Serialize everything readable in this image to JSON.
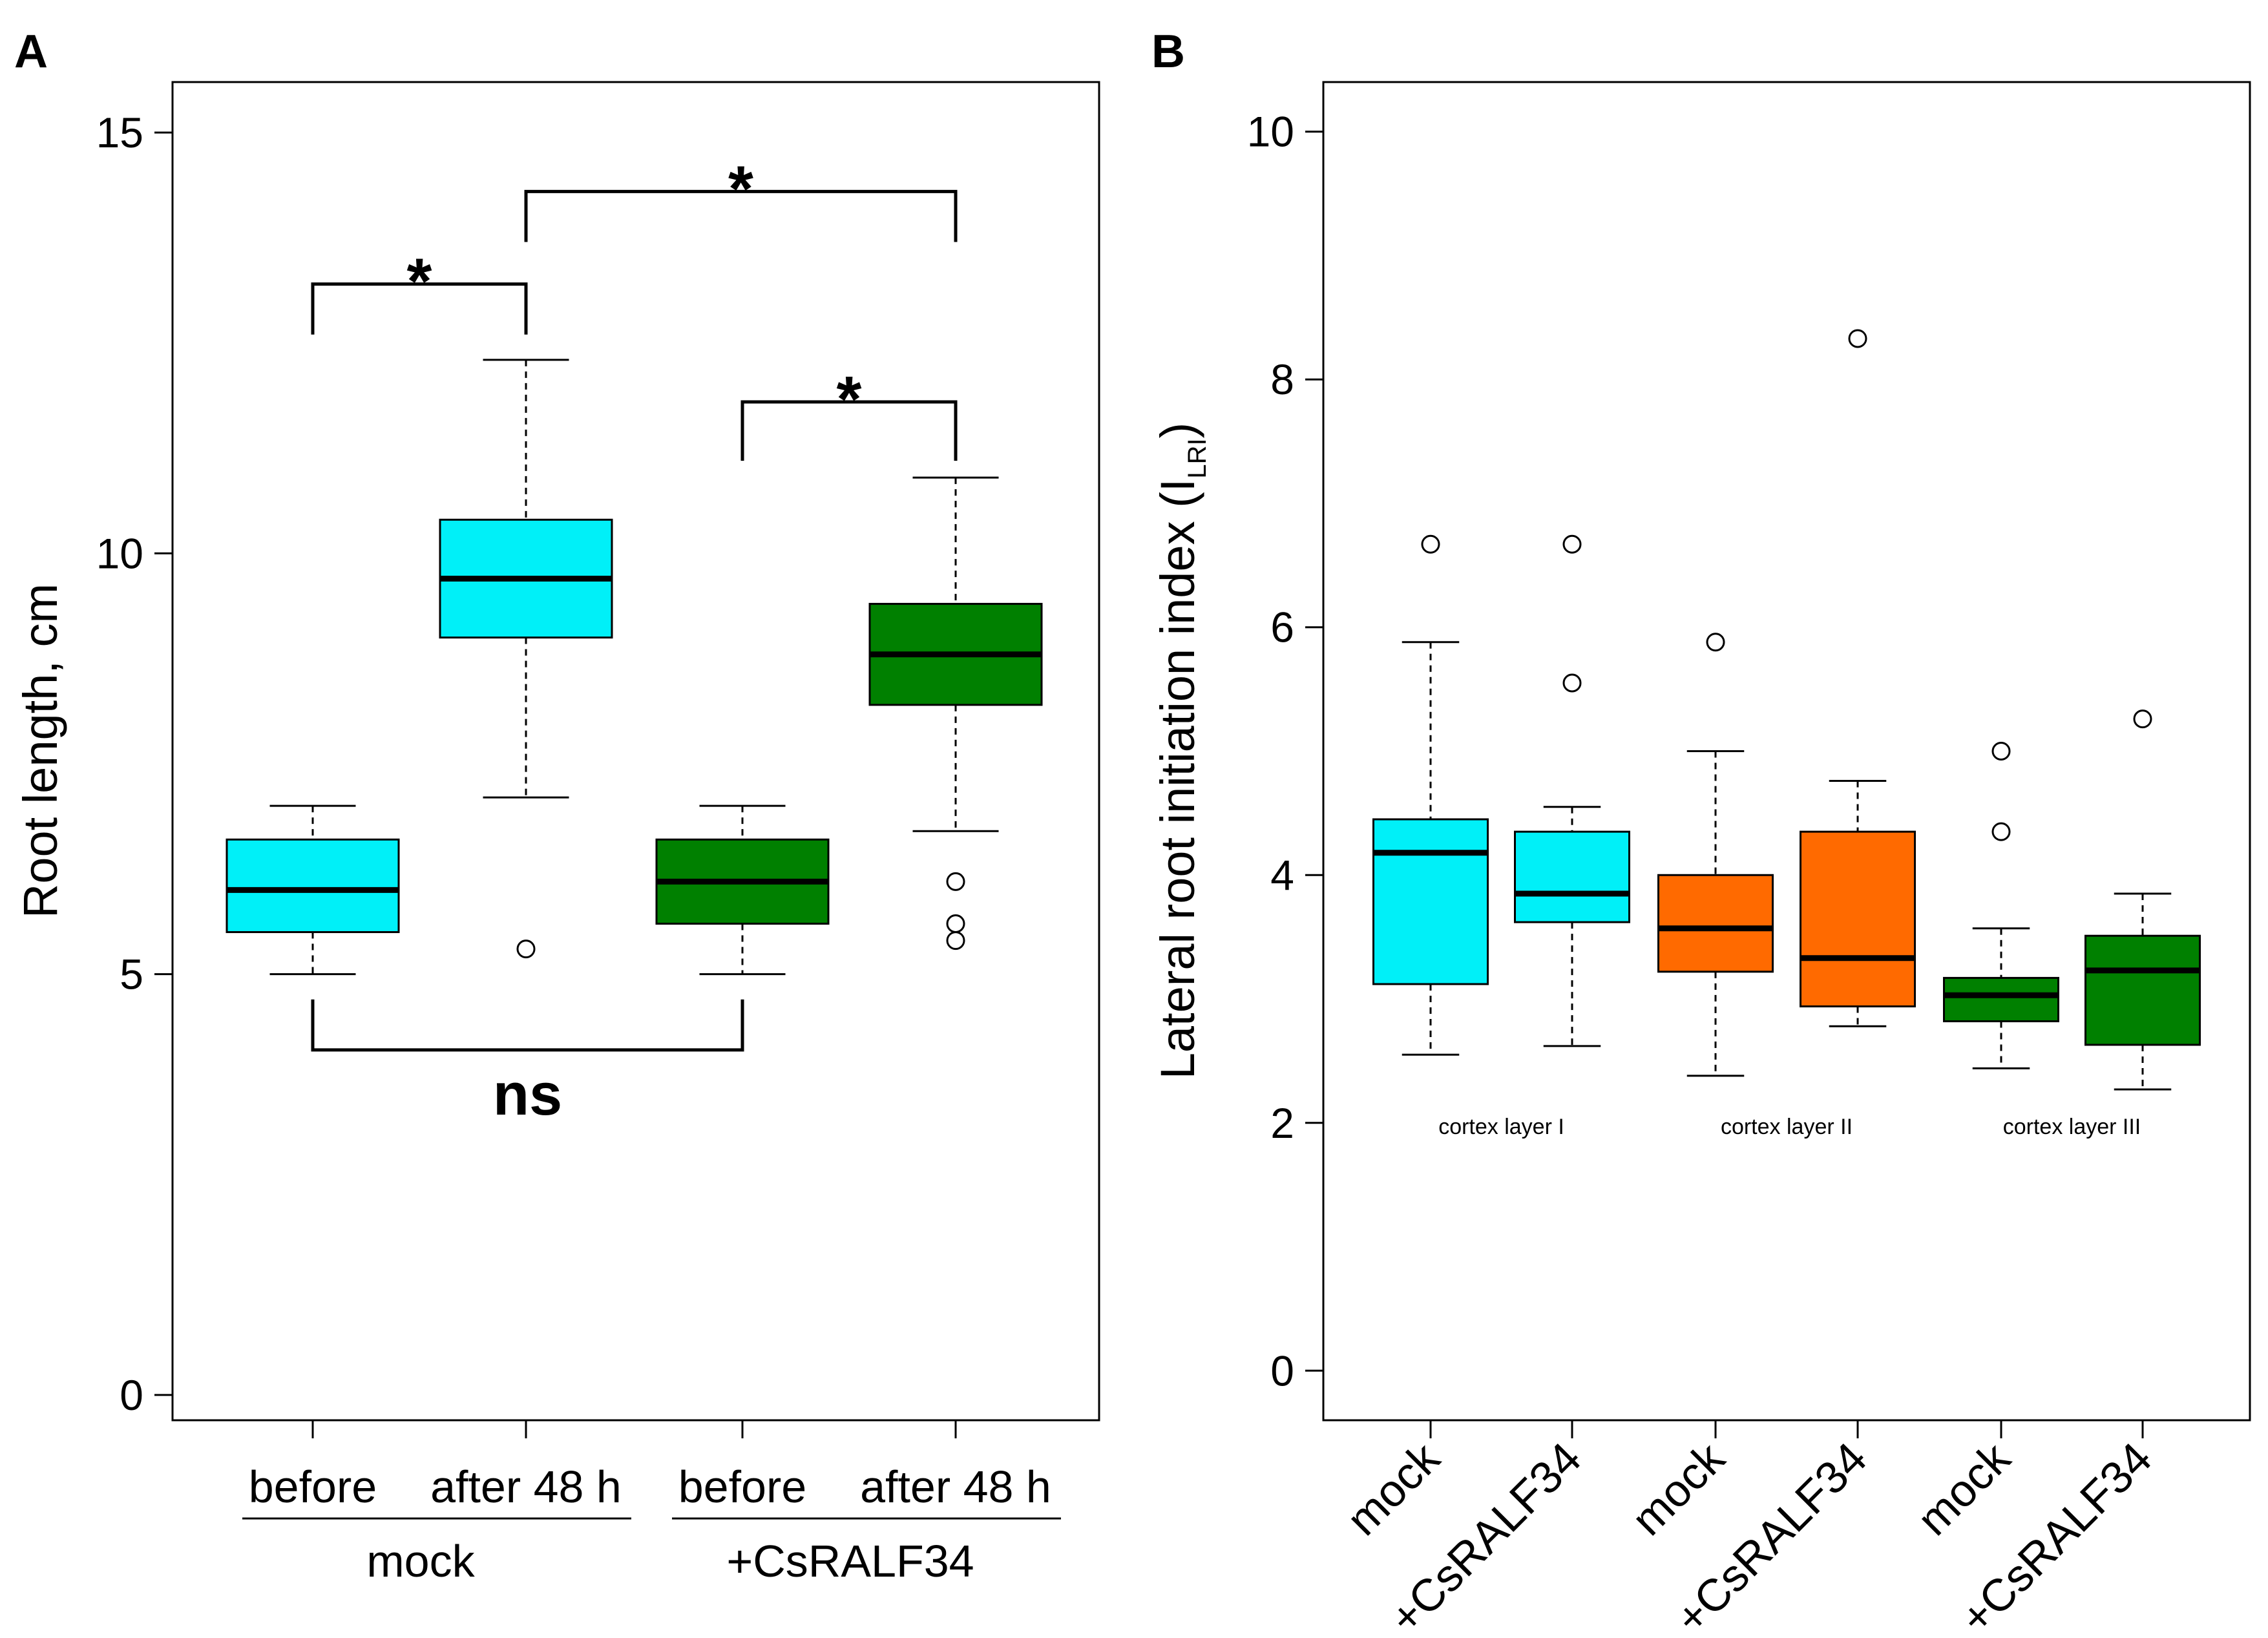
{
  "colors": {
    "cyan": "#00F0F8",
    "green": "#008000",
    "orange": "#FF6A00",
    "black": "#000000"
  },
  "chart_data": [
    {
      "panel": "A",
      "type": "box",
      "ylabel": "Root length, cm",
      "ylim": [
        -0.3,
        15.6
      ],
      "yticks": [
        0,
        5,
        10,
        15
      ],
      "categories": [
        "before",
        "after 48 h",
        "before",
        "after 48 h"
      ],
      "groups": [
        {
          "label": "mock",
          "members": [
            0,
            1
          ]
        },
        {
          "label": "+CsRALF34",
          "members": [
            2,
            3
          ]
        }
      ],
      "boxes": [
        {
          "label": "before",
          "group": "mock",
          "color": "cyan",
          "min": 5.0,
          "q1": 5.5,
          "median": 6.0,
          "q3": 6.6,
          "max": 7.0,
          "outliers": []
        },
        {
          "label": "after 48 h",
          "group": "mock",
          "color": "cyan",
          "min": 7.1,
          "q1": 9.0,
          "median": 9.7,
          "q3": 10.4,
          "max": 12.3,
          "outliers": [
            5.3
          ]
        },
        {
          "label": "before",
          "group": "+CsRALF34",
          "color": "green",
          "min": 5.0,
          "q1": 5.6,
          "median": 6.1,
          "q3": 6.6,
          "max": 7.0,
          "outliers": []
        },
        {
          "label": "after 48 h",
          "group": "+CsRALF34",
          "color": "green",
          "min": 6.7,
          "q1": 8.2,
          "median": 8.8,
          "q3": 9.4,
          "max": 10.9,
          "outliers": [
            6.1,
            5.6,
            5.4
          ]
        }
      ],
      "annotations": [
        {
          "from": 0,
          "to": 1,
          "label": "*",
          "bar_y": 13.2,
          "leg_y": 12.6,
          "direction": "down"
        },
        {
          "from": 1,
          "to": 3,
          "label": "*",
          "bar_y": 14.3,
          "leg_y": 13.7,
          "direction": "down"
        },
        {
          "from": 2,
          "to": 3,
          "label": "*",
          "bar_y": 11.8,
          "leg_y": 11.1,
          "direction": "down"
        },
        {
          "from": 0,
          "to": 2,
          "label": "ns",
          "bar_y": 4.1,
          "leg_y": 4.7,
          "direction": "up"
        }
      ]
    },
    {
      "panel": "B",
      "type": "box",
      "ylabel_main": "Lateral root initiation index (I",
      "ylabel_sub": "LRI",
      "ylabel_end": ")",
      "ylim": [
        -0.4,
        10.4
      ],
      "yticks": [
        0,
        2,
        4,
        6,
        8,
        10
      ],
      "categories": [
        "mock",
        "+CsRALF34",
        "mock",
        "+CsRALF34",
        "mock",
        "+CsRALF34"
      ],
      "layers": [
        {
          "label": "cortex layer I",
          "members": [
            0,
            1
          ]
        },
        {
          "label": "cortex layer II",
          "members": [
            2,
            3
          ]
        },
        {
          "label": "cortex layer III",
          "members": [
            4,
            5
          ]
        }
      ],
      "boxes": [
        {
          "label": "mock",
          "layer": "cortex layer I",
          "color": "cyan",
          "min": 2.55,
          "q1": 3.12,
          "median": 4.18,
          "q3": 4.45,
          "max": 5.88,
          "outliers": [
            6.67
          ]
        },
        {
          "label": "+CsRALF34",
          "layer": "cortex layer I",
          "color": "cyan",
          "min": 2.62,
          "q1": 3.62,
          "median": 3.85,
          "q3": 4.35,
          "max": 4.55,
          "outliers": [
            6.67,
            5.55
          ]
        },
        {
          "label": "mock",
          "layer": "cortex layer II",
          "color": "orange",
          "min": 2.38,
          "q1": 3.22,
          "median": 3.57,
          "q3": 4.0,
          "max": 5.0,
          "outliers": [
            5.88
          ]
        },
        {
          "label": "+CsRALF34",
          "layer": "cortex layer II",
          "color": "orange",
          "min": 2.78,
          "q1": 2.94,
          "median": 3.33,
          "q3": 4.35,
          "max": 4.76,
          "outliers": [
            8.33
          ]
        },
        {
          "label": "mock",
          "layer": "cortex layer III",
          "color": "green",
          "min": 2.44,
          "q1": 2.82,
          "median": 3.03,
          "q3": 3.17,
          "max": 3.57,
          "outliers": [
            5.0,
            4.35
          ]
        },
        {
          "label": "+CsRALF34",
          "layer": "cortex layer III",
          "color": "green",
          "min": 2.27,
          "q1": 2.63,
          "median": 3.23,
          "q3": 3.51,
          "max": 3.85,
          "outliers": [
            5.26
          ]
        }
      ]
    }
  ]
}
